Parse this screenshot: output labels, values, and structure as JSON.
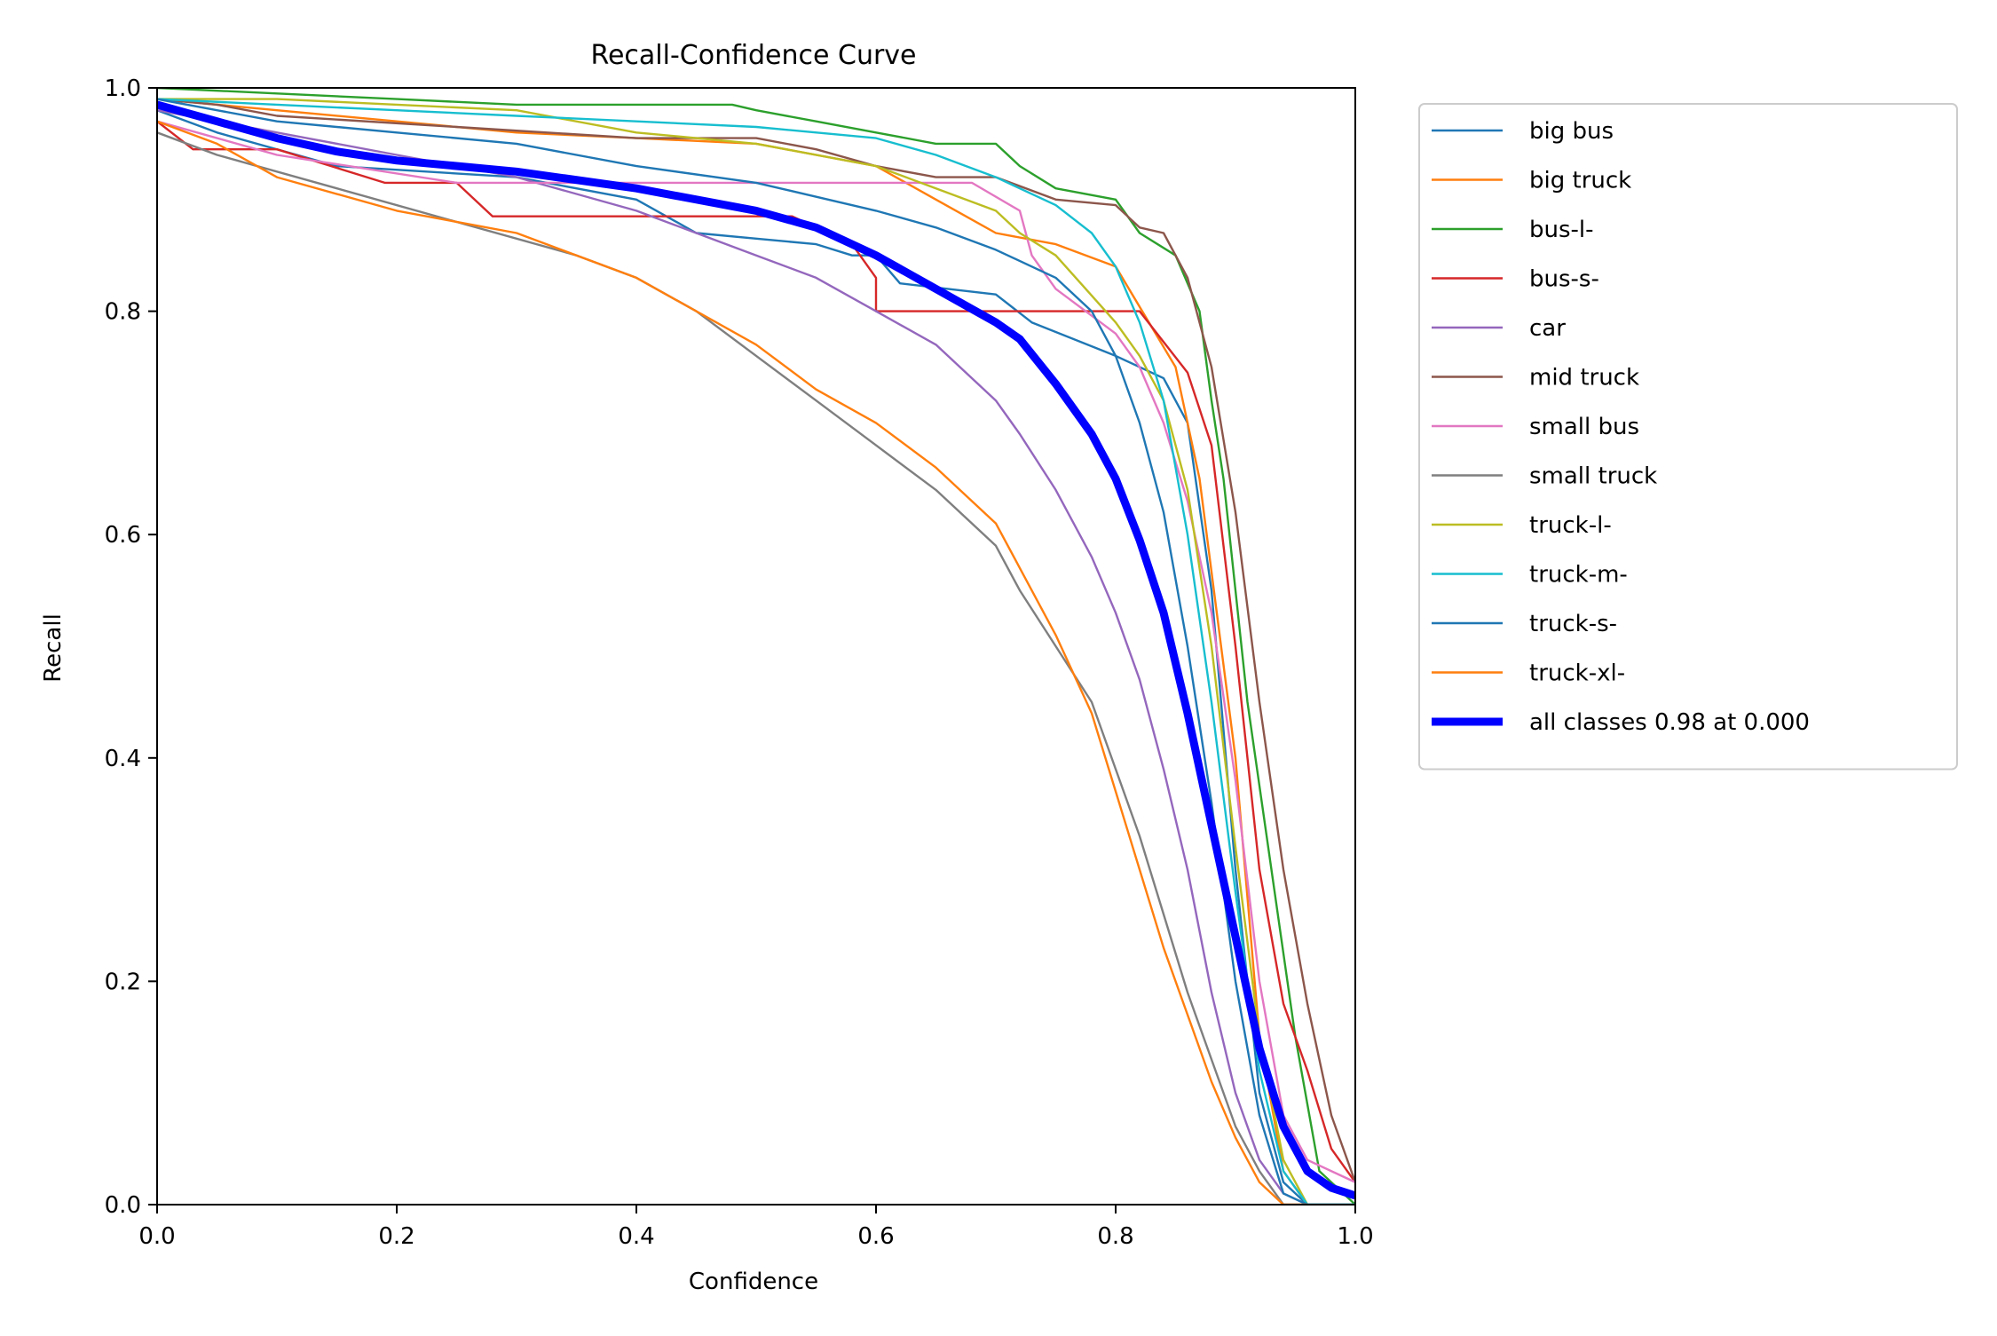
{
  "chart_data": {
    "type": "line",
    "title": "Recall-Confidence Curve",
    "xlabel": "Confidence",
    "ylabel": "Recall",
    "xlim": [
      0,
      1
    ],
    "ylim": [
      0,
      1
    ],
    "xticks": [
      "0.0",
      "0.2",
      "0.4",
      "0.6",
      "0.8",
      "1.0"
    ],
    "yticks": [
      "0.0",
      "0.2",
      "0.4",
      "0.6",
      "0.8",
      "1.0"
    ],
    "grid": false,
    "legend_position": "outside-right",
    "series": [
      {
        "name": "big bus",
        "color": "#1f77b4",
        "x": [
          0,
          0.05,
          0.15,
          0.3,
          0.4,
          0.45,
          0.5,
          0.55,
          0.58,
          0.6,
          0.62,
          0.7,
          0.73,
          0.8,
          0.84,
          0.86,
          0.88,
          0.9,
          0.92,
          0.94,
          0.96,
          1.0
        ],
        "y": [
          0.98,
          0.96,
          0.93,
          0.92,
          0.9,
          0.87,
          0.865,
          0.86,
          0.85,
          0.85,
          0.825,
          0.815,
          0.79,
          0.76,
          0.74,
          0.7,
          0.55,
          0.3,
          0.1,
          0.02,
          0.0,
          0.0
        ]
      },
      {
        "name": "big truck",
        "color": "#ff7f0e",
        "x": [
          0,
          0.1,
          0.2,
          0.3,
          0.4,
          0.5,
          0.6,
          0.65,
          0.7,
          0.75,
          0.8,
          0.85,
          0.87,
          0.9,
          0.92,
          0.94,
          0.96,
          1.0
        ],
        "y": [
          0.99,
          0.98,
          0.97,
          0.96,
          0.955,
          0.95,
          0.93,
          0.9,
          0.87,
          0.86,
          0.84,
          0.75,
          0.65,
          0.4,
          0.15,
          0.03,
          0.0,
          0.0
        ]
      },
      {
        "name": "bus-l-",
        "color": "#2ca02c",
        "x": [
          0,
          0.1,
          0.2,
          0.3,
          0.4,
          0.48,
          0.5,
          0.55,
          0.6,
          0.65,
          0.7,
          0.72,
          0.75,
          0.8,
          0.82,
          0.85,
          0.87,
          0.88,
          0.89,
          0.9,
          0.91,
          0.93,
          0.95,
          0.97,
          1.0
        ],
        "y": [
          1.0,
          0.995,
          0.99,
          0.985,
          0.985,
          0.985,
          0.98,
          0.97,
          0.96,
          0.95,
          0.95,
          0.93,
          0.91,
          0.9,
          0.87,
          0.85,
          0.8,
          0.72,
          0.65,
          0.55,
          0.45,
          0.3,
          0.15,
          0.03,
          0.0
        ]
      },
      {
        "name": "bus-s-",
        "color": "#d62728",
        "x": [
          0,
          0.03,
          0.1,
          0.19,
          0.25,
          0.28,
          0.53,
          0.58,
          0.6,
          0.6,
          0.64,
          0.82,
          0.86,
          0.88,
          0.9,
          0.92,
          0.94,
          0.96,
          0.98,
          1.0
        ],
        "y": [
          0.97,
          0.945,
          0.945,
          0.915,
          0.915,
          0.885,
          0.885,
          0.86,
          0.83,
          0.8,
          0.8,
          0.8,
          0.745,
          0.68,
          0.5,
          0.3,
          0.18,
          0.12,
          0.05,
          0.02
        ]
      },
      {
        "name": "car",
        "color": "#9467bd",
        "x": [
          0,
          0.1,
          0.2,
          0.3,
          0.4,
          0.45,
          0.5,
          0.55,
          0.6,
          0.65,
          0.7,
          0.72,
          0.75,
          0.78,
          0.8,
          0.82,
          0.84,
          0.86,
          0.88,
          0.9,
          0.92,
          0.94,
          0.96,
          1.0
        ],
        "y": [
          0.98,
          0.96,
          0.94,
          0.92,
          0.89,
          0.87,
          0.85,
          0.83,
          0.8,
          0.77,
          0.72,
          0.69,
          0.64,
          0.58,
          0.53,
          0.47,
          0.39,
          0.3,
          0.19,
          0.1,
          0.04,
          0.01,
          0.0,
          0.0
        ]
      },
      {
        "name": "mid truck",
        "color": "#8c564b",
        "x": [
          0,
          0.05,
          0.1,
          0.25,
          0.4,
          0.5,
          0.55,
          0.6,
          0.65,
          0.7,
          0.75,
          0.8,
          0.82,
          0.84,
          0.86,
          0.88,
          0.9,
          0.92,
          0.94,
          0.96,
          0.98,
          1.0
        ],
        "y": [
          0.99,
          0.985,
          0.975,
          0.965,
          0.955,
          0.955,
          0.945,
          0.93,
          0.92,
          0.92,
          0.9,
          0.895,
          0.875,
          0.87,
          0.83,
          0.75,
          0.62,
          0.45,
          0.3,
          0.18,
          0.08,
          0.02
        ]
      },
      {
        "name": "small bus",
        "color": "#e377c2",
        "x": [
          0,
          0.1,
          0.25,
          0.5,
          0.68,
          0.72,
          0.73,
          0.75,
          0.8,
          0.82,
          0.84,
          0.86,
          0.88,
          0.9,
          0.92,
          0.94,
          0.96,
          1.0
        ],
        "y": [
          0.97,
          0.94,
          0.915,
          0.915,
          0.915,
          0.89,
          0.85,
          0.82,
          0.78,
          0.75,
          0.7,
          0.63,
          0.53,
          0.38,
          0.2,
          0.08,
          0.04,
          0.02
        ]
      },
      {
        "name": "small truck",
        "color": "#7f7f7f",
        "x": [
          0,
          0.05,
          0.15,
          0.25,
          0.35,
          0.4,
          0.45,
          0.5,
          0.55,
          0.6,
          0.65,
          0.7,
          0.72,
          0.75,
          0.78,
          0.8,
          0.82,
          0.84,
          0.86,
          0.88,
          0.9,
          0.92,
          0.94,
          0.96
        ],
        "y": [
          0.96,
          0.94,
          0.91,
          0.88,
          0.85,
          0.83,
          0.8,
          0.76,
          0.72,
          0.68,
          0.64,
          0.59,
          0.55,
          0.5,
          0.45,
          0.39,
          0.33,
          0.26,
          0.19,
          0.13,
          0.07,
          0.03,
          0.0,
          0.0
        ]
      },
      {
        "name": "truck-l-",
        "color": "#bcbd22",
        "x": [
          0,
          0.1,
          0.2,
          0.3,
          0.4,
          0.5,
          0.6,
          0.65,
          0.7,
          0.72,
          0.75,
          0.8,
          0.82,
          0.84,
          0.86,
          0.88,
          0.9,
          0.92,
          0.94,
          0.96,
          1.0
        ],
        "y": [
          0.99,
          0.99,
          0.985,
          0.98,
          0.96,
          0.95,
          0.93,
          0.91,
          0.89,
          0.87,
          0.85,
          0.79,
          0.76,
          0.72,
          0.64,
          0.5,
          0.32,
          0.15,
          0.04,
          0.0,
          0.0
        ]
      },
      {
        "name": "truck-m-",
        "color": "#17becf",
        "x": [
          0,
          0.1,
          0.2,
          0.3,
          0.4,
          0.5,
          0.6,
          0.65,
          0.7,
          0.75,
          0.78,
          0.8,
          0.82,
          0.84,
          0.86,
          0.88,
          0.9,
          0.92,
          0.94,
          0.96,
          1.0
        ],
        "y": [
          0.99,
          0.985,
          0.98,
          0.975,
          0.97,
          0.965,
          0.955,
          0.94,
          0.92,
          0.895,
          0.87,
          0.84,
          0.79,
          0.72,
          0.6,
          0.45,
          0.28,
          0.12,
          0.03,
          0.0,
          0.0
        ]
      },
      {
        "name": "truck-s-",
        "color": "#1f77b4",
        "x": [
          0,
          0.05,
          0.1,
          0.2,
          0.3,
          0.4,
          0.5,
          0.6,
          0.65,
          0.7,
          0.75,
          0.78,
          0.8,
          0.82,
          0.84,
          0.86,
          0.88,
          0.9,
          0.92,
          0.94,
          0.96,
          1.0
        ],
        "y": [
          0.99,
          0.98,
          0.97,
          0.96,
          0.95,
          0.93,
          0.915,
          0.89,
          0.875,
          0.855,
          0.83,
          0.8,
          0.76,
          0.7,
          0.62,
          0.5,
          0.36,
          0.2,
          0.08,
          0.01,
          0.0,
          0.0
        ]
      },
      {
        "name": "truck-xl-",
        "color": "#ff7f0e",
        "x": [
          0,
          0.05,
          0.1,
          0.2,
          0.3,
          0.4,
          0.5,
          0.55,
          0.6,
          0.65,
          0.7,
          0.72,
          0.75,
          0.78,
          0.8,
          0.82,
          0.84,
          0.86,
          0.88,
          0.9,
          0.92,
          0.94,
          0.96
        ],
        "y": [
          0.97,
          0.95,
          0.92,
          0.89,
          0.87,
          0.83,
          0.77,
          0.73,
          0.7,
          0.66,
          0.61,
          0.57,
          0.51,
          0.44,
          0.37,
          0.3,
          0.23,
          0.17,
          0.11,
          0.06,
          0.02,
          0.0,
          0.0
        ]
      },
      {
        "name": "all classes 0.98 at 0.000",
        "color": "#0000ff",
        "bold": true,
        "x": [
          0,
          0.05,
          0.1,
          0.15,
          0.2,
          0.3,
          0.4,
          0.5,
          0.55,
          0.6,
          0.65,
          0.7,
          0.72,
          0.75,
          0.78,
          0.8,
          0.82,
          0.84,
          0.86,
          0.88,
          0.9,
          0.92,
          0.94,
          0.96,
          0.98,
          1.0
        ],
        "y": [
          0.985,
          0.97,
          0.955,
          0.943,
          0.935,
          0.925,
          0.91,
          0.89,
          0.875,
          0.85,
          0.82,
          0.79,
          0.775,
          0.735,
          0.69,
          0.65,
          0.595,
          0.53,
          0.44,
          0.34,
          0.24,
          0.14,
          0.07,
          0.03,
          0.015,
          0.008
        ]
      }
    ]
  }
}
